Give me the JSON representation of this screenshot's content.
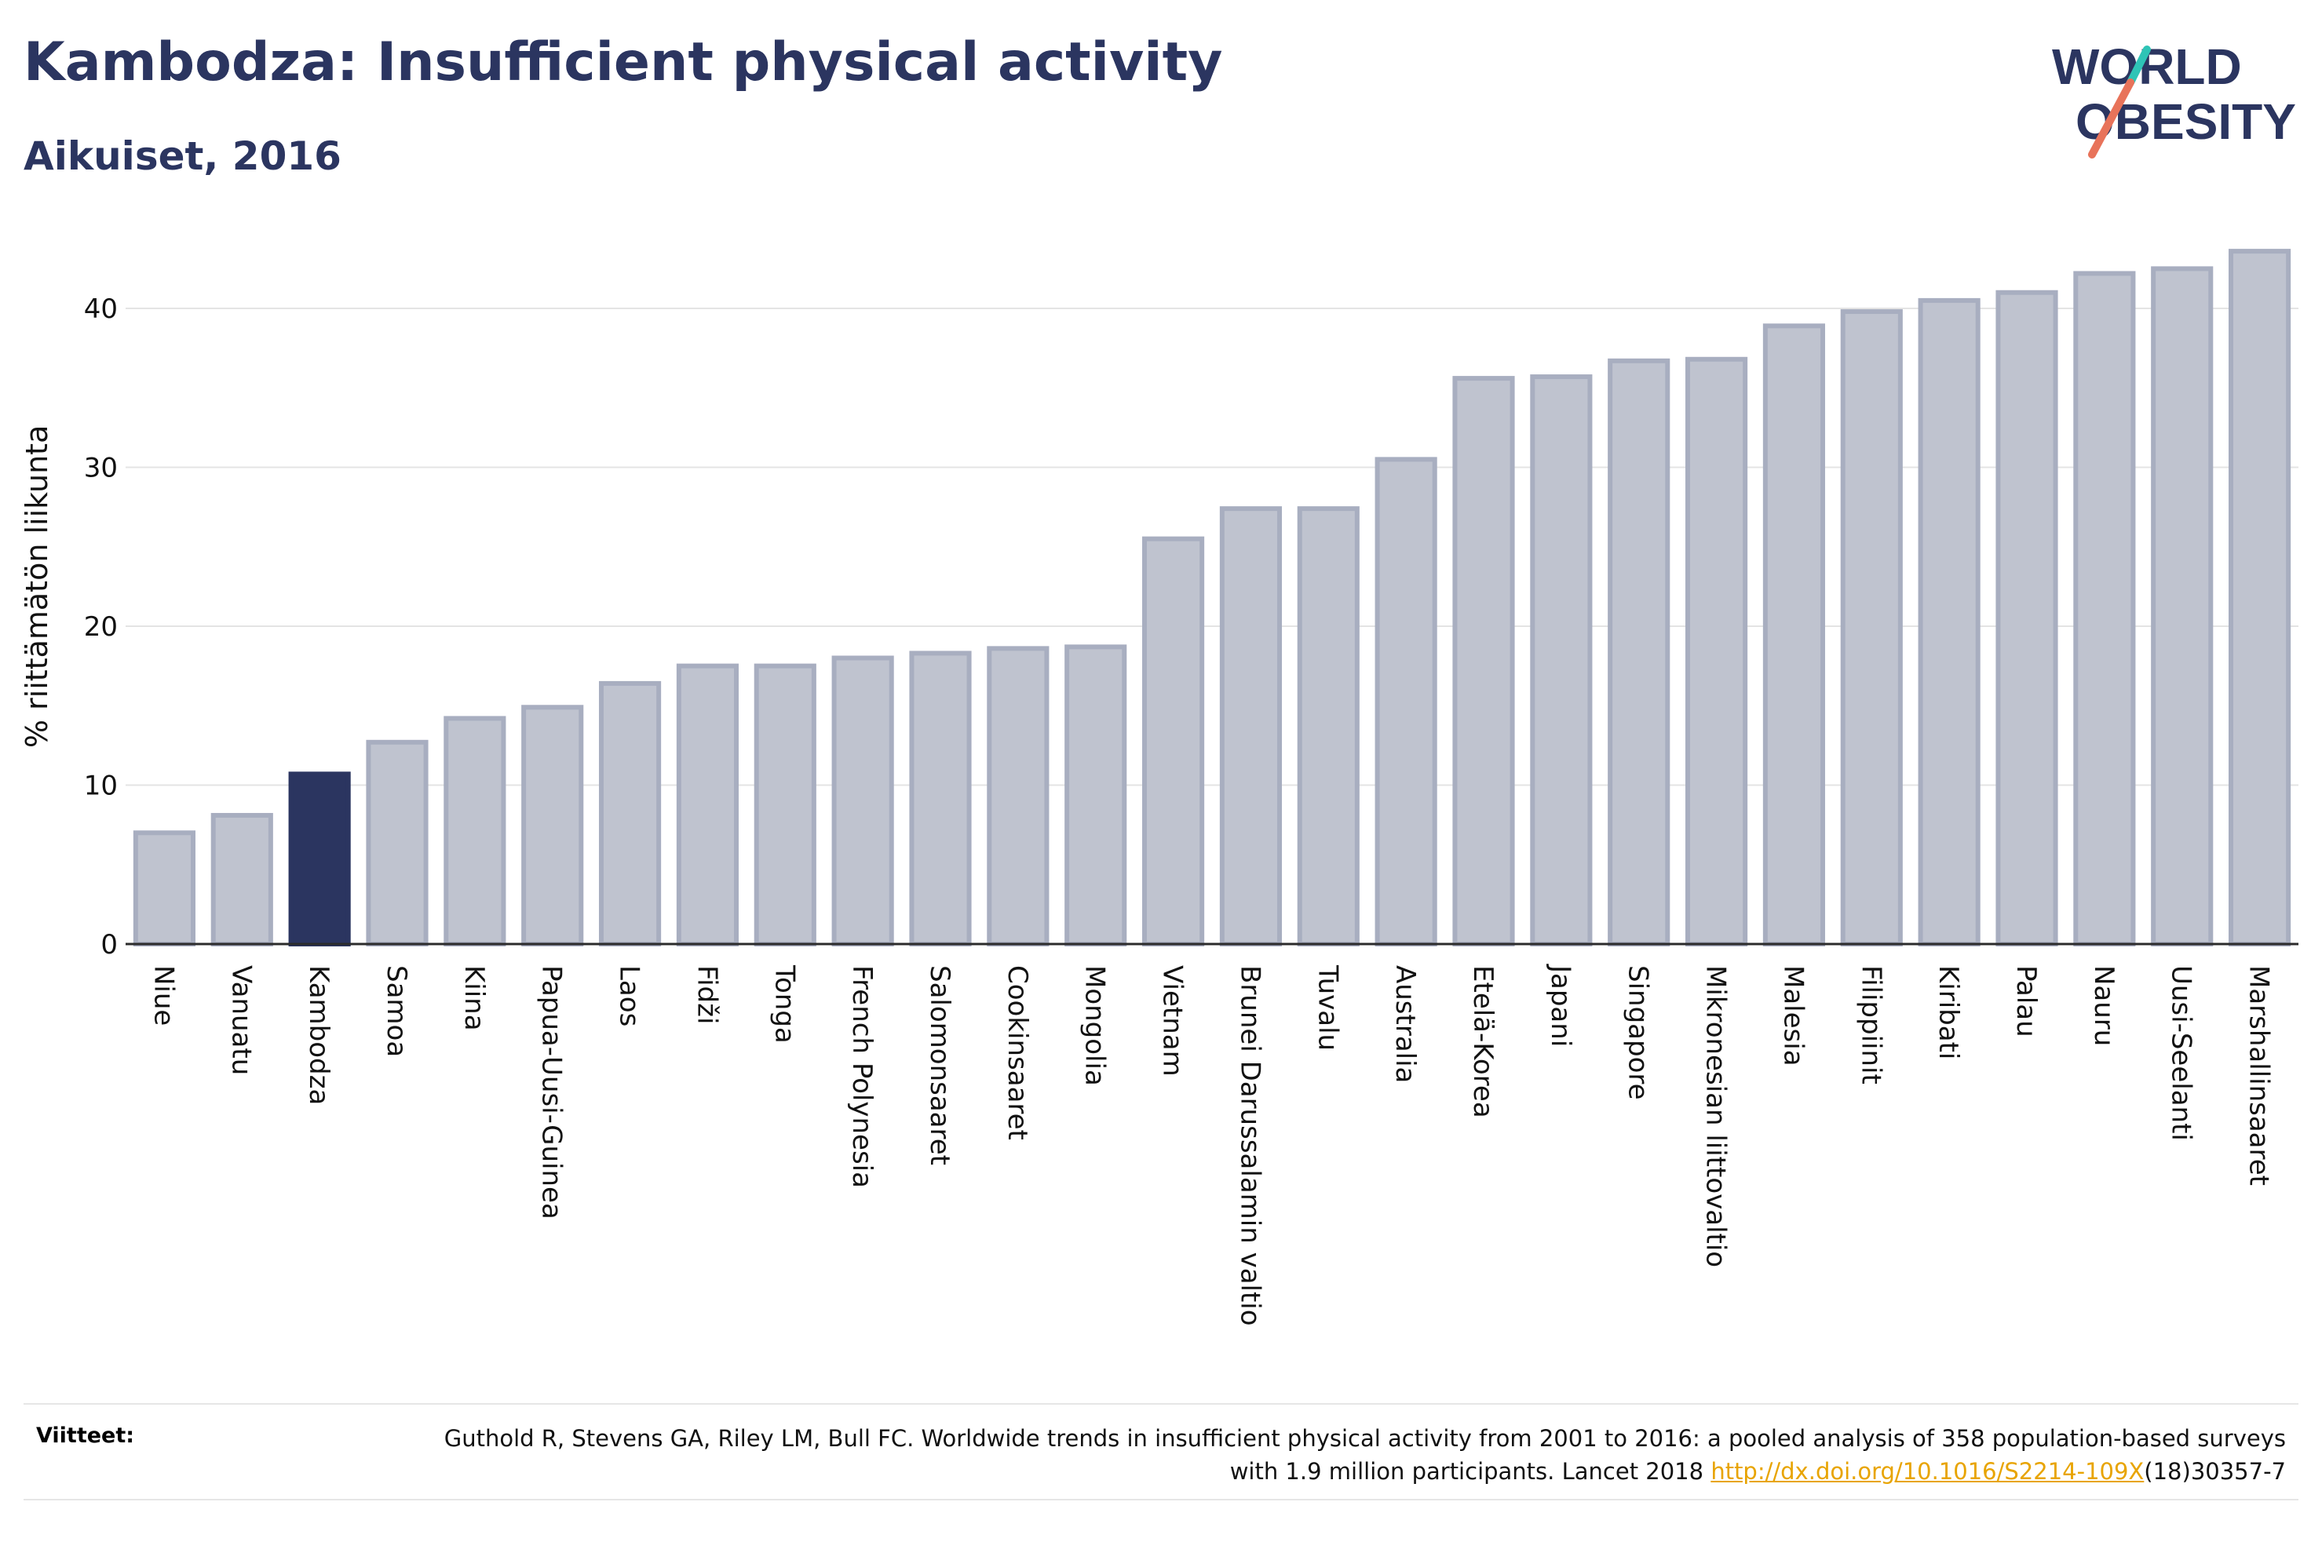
{
  "header": {
    "title": "Kambodza: Insufficient physical activity",
    "subtitle": "Aikuiset, 2016"
  },
  "logo": {
    "line1": "WORLD",
    "line2": "OBESITY"
  },
  "colors": {
    "title": "#2b3560",
    "highlight_bar": "#2b3560",
    "bar_fill": "#bfc3cf",
    "bar_stroke": "#a8aec0",
    "logo_slash": "#e8735a",
    "logo_slash_top": "#2ec4b6",
    "link": "#e8a400"
  },
  "chart_data": {
    "type": "bar",
    "ylabel": "% riittämätön liikunta",
    "xlabel": "",
    "ylim": [
      0,
      45
    ],
    "yticks": [
      0,
      10,
      20,
      30,
      40
    ],
    "grid": true,
    "highlight": "Kambodza",
    "categories": [
      "Niue",
      "Vanuatu",
      "Kambodza",
      "Samoa",
      "Kiina",
      "Papua-Uusi-Guinea",
      "Laos",
      "Fidži",
      "Tonga",
      "French Polynesia",
      "Salomonsaaret",
      "Cookinsaaret",
      "Mongolia",
      "Vietnam",
      "Brunei Darussalamin valtio",
      "Tuvalu",
      "Australia",
      "Etelä-Korea",
      "Japani",
      "Singapore",
      "Mikronesian liittovaltio",
      "Malesia",
      "Filippiinit",
      "Kiribati",
      "Palau",
      "Nauru",
      "Uusi-Seelanti",
      "Marshallinsaaret"
    ],
    "values": [
      7.0,
      8.1,
      10.7,
      12.7,
      14.2,
      14.9,
      16.4,
      17.5,
      17.5,
      18.0,
      18.3,
      18.6,
      18.7,
      25.5,
      27.4,
      27.4,
      30.5,
      35.6,
      35.7,
      36.7,
      36.8,
      38.9,
      39.8,
      40.5,
      41.0,
      42.2,
      42.5,
      43.6
    ]
  },
  "footer": {
    "refs_label": "Viitteet:",
    "ref_text_1": "Guthold R, Stevens GA, Riley LM, Bull FC. Worldwide trends in insufficient physical activity from 2001 to 2016: a pooled analysis of 358 population-based surveys with 1.9 million participants. Lancet 2018 ",
    "ref_link": "http://dx.doi.org/10.1016/S2214-109X",
    "ref_text_2": "(18)30357-7"
  }
}
